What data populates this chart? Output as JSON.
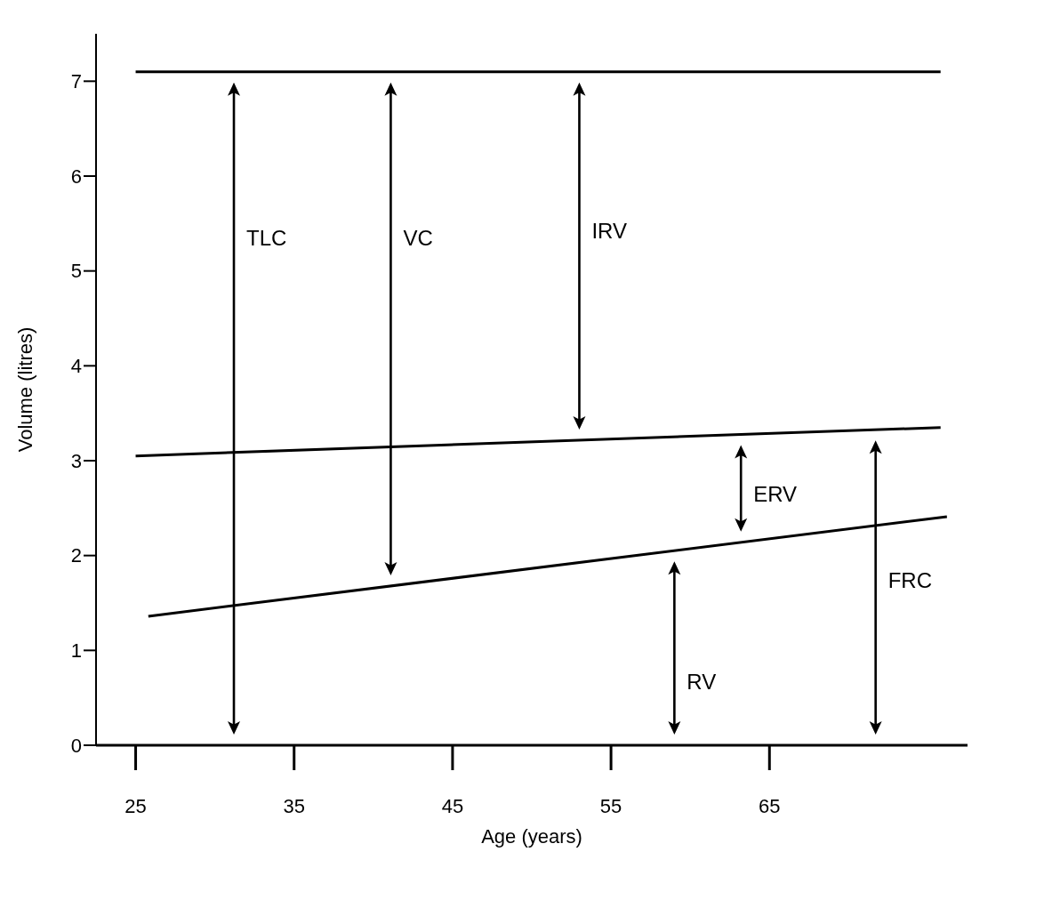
{
  "chart_data": {
    "type": "line",
    "xlabel": "Age (years)",
    "ylabel": "Volume (litres)",
    "xlim": [
      22.5,
      77.5
    ],
    "xticks": [
      25,
      35,
      45,
      55,
      65
    ],
    "ylim": [
      0,
      7.5
    ],
    "yticks": [
      0,
      1,
      2,
      3,
      4,
      5,
      6,
      7
    ],
    "grid": false,
    "marker": "none",
    "line_style": "solid",
    "series": [
      {
        "color": "#000000",
        "x": [
          25,
          75.8
        ],
        "values": [
          7.1,
          7.1
        ]
      },
      {
        "color": "#000000",
        "x": [
          25,
          75.8
        ],
        "values": [
          3.05,
          3.35
        ]
      },
      {
        "color": "#000000",
        "x": [
          25.8,
          76.2
        ],
        "values": [
          1.36,
          2.41
        ]
      }
    ],
    "annotations": [
      "TLC",
      "VC",
      "IRV",
      "ERV",
      "FRC",
      "RV"
    ]
  }
}
